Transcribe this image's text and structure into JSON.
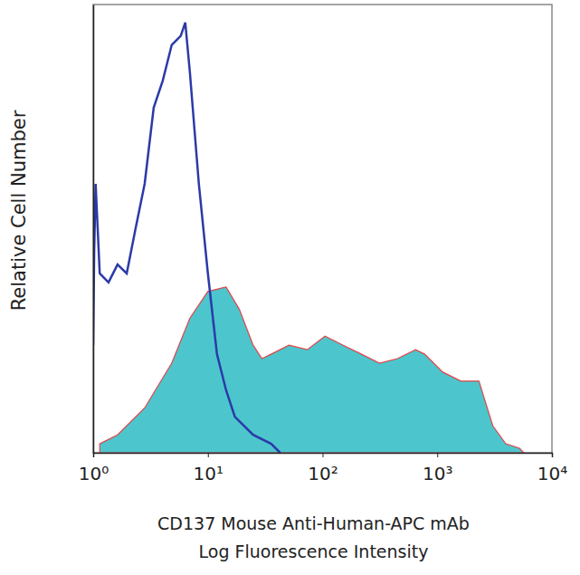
{
  "chart_data": {
    "type": "line",
    "ylabel": "Relative Cell Number",
    "xlabel": [
      "CD137 Mouse Anti-Human-APC mAb",
      "Log Fluorescence Intensity"
    ],
    "log": "x",
    "tick_labels": "x",
    "xlim": [
      1,
      10000
    ],
    "xticks": [
      {
        "value": 1,
        "label": "10⁰"
      },
      {
        "value": 10,
        "label": "10¹"
      },
      {
        "value": 100,
        "label": "10²"
      },
      {
        "value": 1000,
        "label": "10³"
      },
      {
        "value": 10000,
        "label": "10⁴"
      }
    ],
    "ylim": [
      0,
      100
    ],
    "series": [
      {
        "type": "line",
        "color": "#2b3aa8",
        "x": [
          1,
          1.02,
          1.05,
          1.14,
          1.36,
          1.63,
          1.96,
          2.34,
          2.81,
          3.37,
          4.04,
          4.84,
          5.8,
          6.35,
          6.96,
          8.34,
          10,
          12,
          14.4,
          17.2,
          24.8,
          35.6,
          42.7
        ],
        "values": [
          24,
          45,
          60,
          40,
          38,
          42,
          40,
          50,
          60,
          77,
          83,
          91,
          93,
          96,
          85,
          60,
          40,
          22,
          14,
          8,
          4,
          2,
          0
        ]
      },
      {
        "type": "area",
        "color": "#4cc6cc",
        "x": [
          1.14,
          1.63,
          2.81,
          4.84,
          6.96,
          10,
          14.4,
          18.8,
          24.8,
          29.6,
          35.6,
          51,
          73.5,
          105,
          151,
          218,
          313,
          450,
          647,
          776,
          1116,
          1605,
          2308,
          3050,
          3955,
          5212,
          5700
        ],
        "values": [
          2,
          4,
          10,
          20,
          30,
          36,
          37,
          32,
          24,
          21,
          22,
          24,
          23,
          26,
          24,
          22,
          20,
          21,
          23,
          22,
          18,
          16,
          16,
          6,
          2,
          1,
          0
        ]
      }
    ]
  }
}
